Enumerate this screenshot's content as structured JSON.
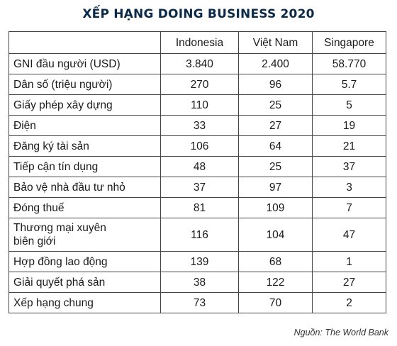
{
  "title": "XẾP HẠNG DOING BUSINESS 2020",
  "source": "Nguồn: The World Bank",
  "chart_data": {
    "type": "table",
    "title": "XẾP HẠNG DOING BUSINESS 2020",
    "columns": [
      "",
      "Indonesia",
      "Việt Nam",
      "Singapore"
    ],
    "rows": [
      {
        "label": "GNI đầu người  (USD)",
        "values": [
          "3.840",
          "2.400",
          "58.770"
        ]
      },
      {
        "label": "Dân số (triệu người)",
        "values": [
          "270",
          "96",
          "5.7"
        ]
      },
      {
        "label": "Giấy phép xây dựng",
        "values": [
          "110",
          "25",
          "5"
        ]
      },
      {
        "label": "Điện",
        "values": [
          "33",
          "27",
          "19"
        ]
      },
      {
        "label": "Đăng ký tài sản",
        "values": [
          "106",
          "64",
          "21"
        ]
      },
      {
        "label": "Tiếp cận tín dụng",
        "values": [
          "48",
          "25",
          "37"
        ]
      },
      {
        "label": "Bảo vệ nhà đầu tư nhỏ",
        "values": [
          "37",
          "97",
          "3"
        ]
      },
      {
        "label": "Đóng thuế",
        "values": [
          "81",
          "109",
          "7"
        ]
      },
      {
        "label": "Thương mại xuyên\nbiên giới",
        "values": [
          "116",
          "104",
          "47"
        ]
      },
      {
        "label": "Hợp đồng lao động",
        "values": [
          "139",
          "68",
          "1"
        ]
      },
      {
        "label": "Giải quyết phá sản",
        "values": [
          "38",
          "122",
          "27"
        ]
      },
      {
        "label": "Xếp hạng chung",
        "values": [
          "73",
          "70",
          "2"
        ]
      }
    ]
  }
}
